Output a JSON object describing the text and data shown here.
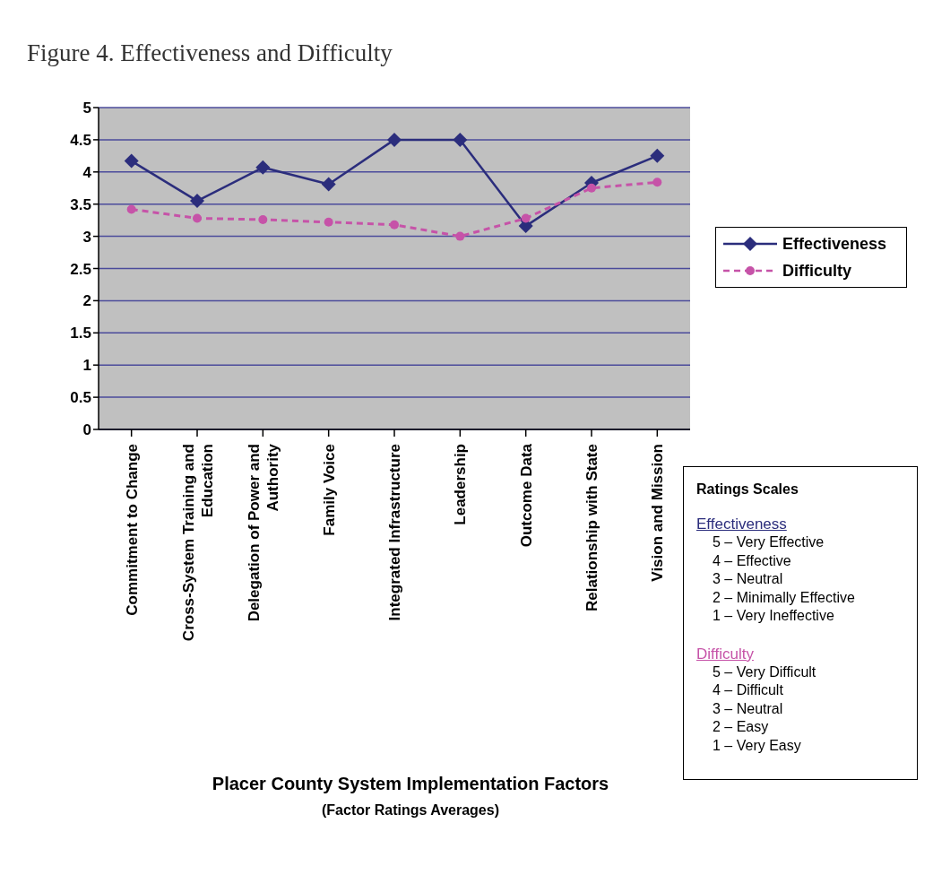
{
  "chart_data": {
    "type": "line",
    "title": "Figure 4. Effectiveness and Difficulty",
    "categories": [
      "Commitment to Change",
      "Cross-System Training and Education",
      "Delegation of Power and Authority",
      "Family Voice",
      "Integrated Infrastructure",
      "Leadership",
      "Outcome Data",
      "Relationship with State",
      "Vision and Mission"
    ],
    "series": [
      {
        "name": "Effectiveness",
        "color": "#2b2d7c",
        "marker": "diamond",
        "line_style": "solid",
        "values": [
          4.17,
          3.55,
          4.07,
          3.81,
          4.5,
          4.5,
          3.16,
          3.83,
          4.25
        ]
      },
      {
        "name": "Difficulty",
        "color": "#c653a8",
        "marker": "circle",
        "line_style": "dashed",
        "values": [
          3.42,
          3.28,
          3.26,
          3.22,
          3.18,
          3.0,
          3.28,
          3.75,
          3.84
        ]
      }
    ],
    "ylim": [
      0,
      5
    ],
    "yticks": [
      0,
      0.5,
      1,
      1.5,
      2,
      2.5,
      3,
      3.5,
      4,
      4.5,
      5
    ],
    "grid": "y",
    "legend": "right",
    "annotations": [
      "Placer County System Implementation Factors",
      "(Factor Ratings Averages)",
      "Ratings Scales",
      "Effectiveness",
      "5 – Very Effective",
      "4 – Effective",
      "3 – Neutral",
      "2 – Minimally Effective",
      "1 – Very Ineffective",
      "Difficulty",
      "5 – Very Difficult",
      "4 – Difficult",
      "3 – Neutral",
      "2 – Easy",
      "1 – Very Easy"
    ]
  }
}
